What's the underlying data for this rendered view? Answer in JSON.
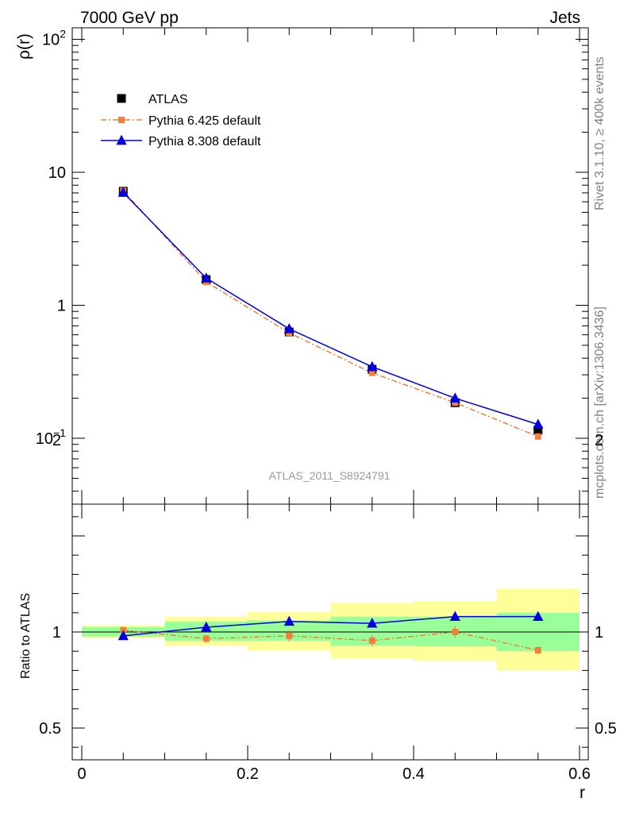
{
  "header": {
    "left": "7000 GeV pp",
    "right": "Jets"
  },
  "side_labels": {
    "rivet": "Rivet 3.1.10, ≥ 400k events",
    "mcplots": "mcplots.cern.ch [arXiv:1306.3436]"
  },
  "watermark": "ATLAS_2011_S8924791",
  "colors": {
    "data": "#000000",
    "pythia6": "#f0803c",
    "pythia8": "#0000e0",
    "band_stat": "#99ff99",
    "band_total": "#ffff99"
  },
  "chart_data": [
    {
      "type": "line",
      "panel": "main",
      "ylabel": "ρ(r)",
      "yscale": "log",
      "ylim": [
        0.035,
        120
      ],
      "xlim": [
        -0.01,
        0.6
      ],
      "yticks": [
        {
          "base": "10",
          "exp": "2"
        },
        {
          "base": "10",
          "exp": ""
        },
        {
          "base": "1",
          "exp": ""
        },
        {
          "base": "10",
          "exp": "−1"
        }
      ],
      "x": [
        0.05,
        0.15,
        0.25,
        0.35,
        0.45,
        0.55
      ],
      "legend_position": "top-left",
      "series": [
        {
          "name": "ATLAS",
          "values": [
            7.2,
            1.56,
            0.63,
            0.33,
            0.185,
            0.115
          ]
        },
        {
          "name": "Pythia 6.425 default",
          "values": [
            7.25,
            1.5,
            0.62,
            0.31,
            0.185,
            0.103
          ]
        },
        {
          "name": "Pythia 8.308 default",
          "values": [
            7.05,
            1.6,
            0.665,
            0.345,
            0.2,
            0.127
          ]
        }
      ]
    },
    {
      "type": "line",
      "panel": "ratio",
      "ylabel": "Ratio to ATLAS",
      "xlabel": "r",
      "ylim": [
        0.4,
        2.3
      ],
      "xlim": [
        -0.01,
        0.6
      ],
      "yticks": [
        "2",
        "1",
        "0.5"
      ],
      "xticks": [
        "0",
        "0.2",
        "0.4",
        "0.6"
      ],
      "bins": [
        [
          0.0,
          0.1
        ],
        [
          0.1,
          0.2
        ],
        [
          0.2,
          0.3
        ],
        [
          0.3,
          0.4
        ],
        [
          0.4,
          0.5
        ],
        [
          0.5,
          0.6
        ]
      ],
      "band_stat": [
        [
          0.975,
          1.025
        ],
        [
          0.955,
          1.055
        ],
        [
          0.955,
          1.06
        ],
        [
          0.93,
          1.08
        ],
        [
          0.925,
          1.08
        ],
        [
          0.9,
          1.1
        ]
      ],
      "band_total": [
        [
          0.97,
          1.035
        ],
        [
          0.93,
          1.08
        ],
        [
          0.905,
          1.105
        ],
        [
          0.86,
          1.15
        ],
        [
          0.85,
          1.16
        ],
        [
          0.8,
          1.225
        ]
      ],
      "x": [
        0.05,
        0.15,
        0.25,
        0.35,
        0.45,
        0.55
      ],
      "series": [
        {
          "name": "Pythia 6.425 default",
          "values": [
            1.01,
            0.965,
            0.98,
            0.955,
            1.0,
            0.905
          ],
          "errors": [
            0.01,
            0.02,
            0.03,
            0.03,
            0.03,
            0.02
          ]
        },
        {
          "name": "Pythia 8.308 default",
          "values": [
            0.98,
            1.025,
            1.055,
            1.045,
            1.08,
            1.08
          ]
        }
      ]
    }
  ]
}
